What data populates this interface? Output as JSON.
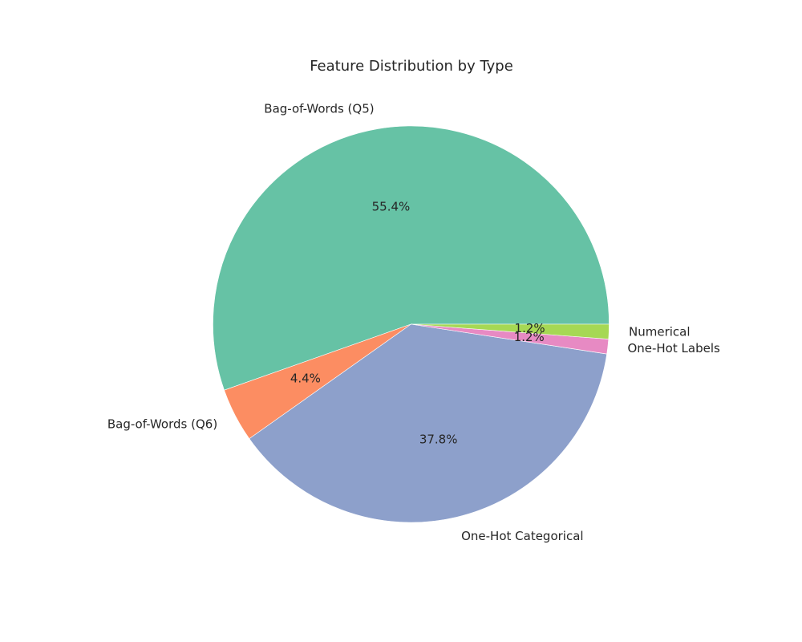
{
  "chart_data": {
    "type": "pie",
    "title": "Feature Distribution by Type",
    "slices": [
      {
        "label": "Bag-of-Words (Q5)",
        "value": 55.4,
        "pct_label": "55.4%",
        "color": "#66c2a5"
      },
      {
        "label": "Bag-of-Words (Q6)",
        "value": 4.4,
        "pct_label": "4.4%",
        "color": "#fc8d62"
      },
      {
        "label": "One-Hot Categorical",
        "value": 37.8,
        "pct_label": "37.8%",
        "color": "#8da0cb"
      },
      {
        "label": "One-Hot Labels",
        "value": 1.2,
        "pct_label": "1.2%",
        "color": "#e78ac3"
      },
      {
        "label": "Numerical",
        "value": 1.2,
        "pct_label": "1.2%",
        "color": "#a6d854"
      }
    ],
    "start_angle_deg": 0,
    "direction": "counterclockwise",
    "legend": "none"
  }
}
